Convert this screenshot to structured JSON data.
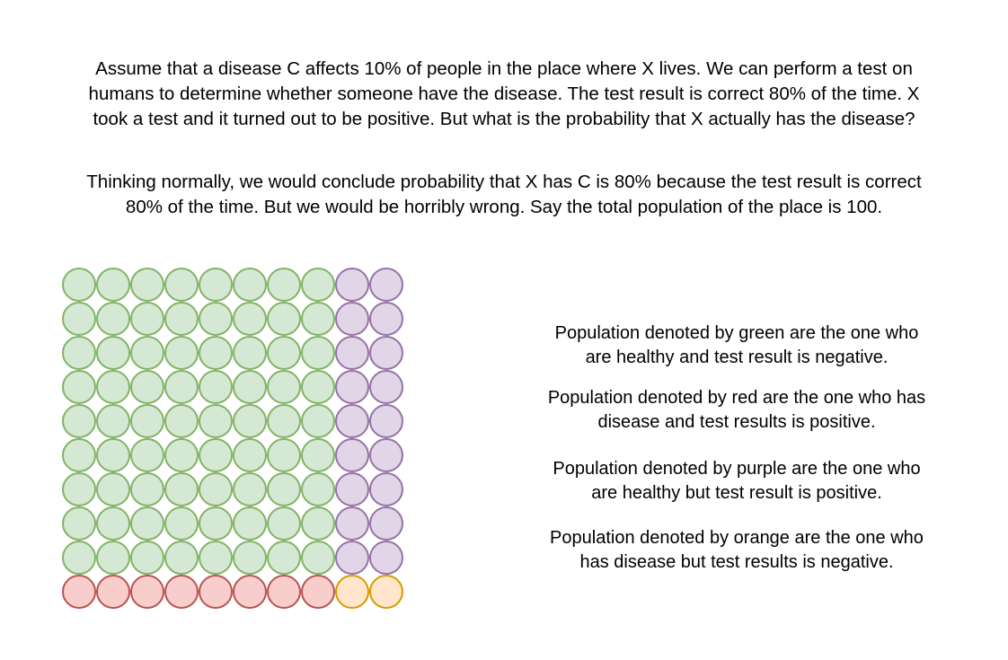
{
  "intro": {
    "line1": "Assume that a disease C affects 10% of people in the place where X lives. We can perform a test on",
    "line2": "humans to determine whether someone have the disease. The test result is correct 80% of the time. X",
    "line3": "took a test and it turned out to be positive. But what is the probability that X actually has the disease?"
  },
  "reasoning": {
    "line1": "Thinking normally, we would conclude probability that X has C is 80% because the test result is correct",
    "line2": "80% of the time. But we would be horribly wrong. Say the total population of the place is 100."
  },
  "legend": {
    "green": {
      "line1": "Population denoted by green are the one who",
      "line2": "are healthy and test result is negative."
    },
    "red": {
      "line1": "Population denoted by red are the one who has",
      "line2": "disease and test results is positive."
    },
    "purple": {
      "line1": "Population denoted by purple are the one who",
      "line2": "are healthy but test result is positive."
    },
    "orange": {
      "line1": "Population denoted by orange are the one who",
      "line2": "has disease but test results is negative."
    }
  },
  "grid": {
    "rows": 10,
    "cols": 10,
    "total": 100,
    "layout": [
      "GGGGGGGGPP",
      "GGGGGGGGPP",
      "GGGGGGGGPP",
      "GGGGGGGGPP",
      "GGGGGGGGPP",
      "GGGGGGGGPP",
      "GGGGGGGGPP",
      "GGGGGGGGPP",
      "GGGGGGGGPP",
      "RRRRRRRROO"
    ],
    "colors": {
      "G": {
        "group": "green",
        "fill": "#d5e8d4",
        "stroke": "#82b366"
      },
      "P": {
        "group": "purple",
        "fill": "#e1d5e7",
        "stroke": "#9673a6"
      },
      "R": {
        "group": "red",
        "fill": "#f8cecc",
        "stroke": "#b85450"
      },
      "O": {
        "group": "orange",
        "fill": "#ffe6cc",
        "stroke": "#d79b00"
      }
    }
  }
}
